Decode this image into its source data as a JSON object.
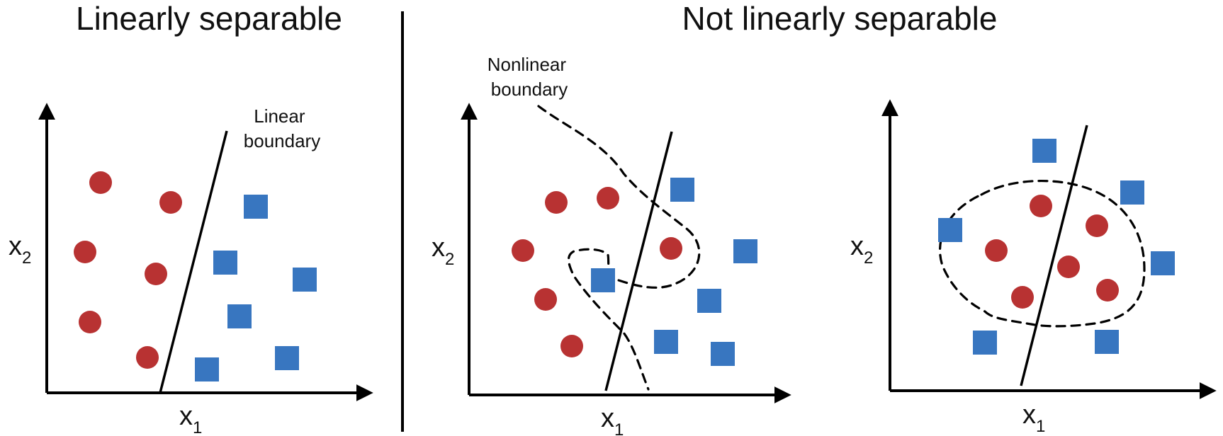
{
  "titles": {
    "left": "Linearly separable",
    "right": "Not linearly separable"
  },
  "annotations": {
    "linear_boundary": [
      "Linear",
      "boundary"
    ],
    "nonlinear_boundary": [
      "Nonlinear",
      "boundary"
    ]
  },
  "axes": {
    "x_main": "x",
    "x_sub": "1",
    "y_main": "x",
    "y_sub": "2"
  },
  "colors": {
    "circle": "#b83232",
    "square": "#3876c0"
  },
  "icons": {
    "circle": "red-circle-icon",
    "square": "blue-square-icon"
  }
}
